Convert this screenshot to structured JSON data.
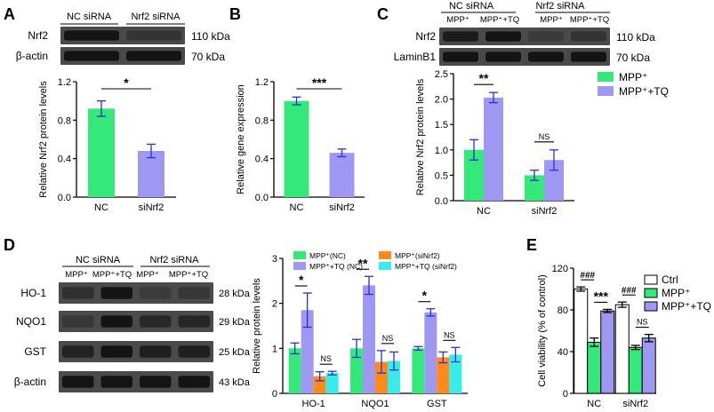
{
  "colors": {
    "green": "#35e87a",
    "purple": "#9e98f2",
    "orange": "#ff8a1a",
    "cyan": "#36ecec",
    "white": "#ffffff",
    "errorbar": "#2a2fd6",
    "blot_band": "#1a1a1a",
    "blot_bg": "#4a4a4a"
  },
  "panels": {
    "a": {
      "letter": "A",
      "blot": {
        "lane_labels": [
          "NC siRNA",
          "Nrf2 siRNA"
        ],
        "rows": [
          {
            "name": "Nrf2",
            "kda": "110 kDa"
          },
          {
            "name": "β-actin",
            "kda": "70 kDa"
          }
        ]
      }
    },
    "b": {
      "letter": "B"
    },
    "c": {
      "letter": "C",
      "blot": {
        "group_labels": [
          "NC siRNA",
          "Nrf2 siRNA"
        ],
        "lane_labels": [
          "MPP⁺",
          "MPP⁺+TQ",
          "MPP⁺",
          "MPP⁺+TQ"
        ],
        "rows": [
          {
            "name": "Nrf2",
            "kda": "110 kDa"
          },
          {
            "name": "LaminB1",
            "kda": "70 kDa"
          }
        ]
      }
    },
    "d": {
      "letter": "D",
      "blot": {
        "group_labels": [
          "NC siRNA",
          "Nrf2 siRNA"
        ],
        "lane_labels": [
          "MPP⁺",
          "MPP⁺+TQ",
          "MPP⁺",
          "MPP⁺+TQ"
        ],
        "rows": [
          {
            "name": "HO-1",
            "kda": "28 kDa"
          },
          {
            "name": "NQO1",
            "kda": "29 kDa"
          },
          {
            "name": "GST",
            "kda": "25 kDa"
          },
          {
            "name": "β-actin",
            "kda": "43 kDa"
          }
        ]
      }
    },
    "e": {
      "letter": "E"
    }
  },
  "chart_data": [
    {
      "id": "A",
      "type": "bar",
      "ylabel": "Relative Nrf2 protein levels",
      "ylim": [
        0,
        1.2
      ],
      "yticks": [
        "0.0",
        "0.4",
        "0.8",
        "1.2"
      ],
      "categories": [
        "NC",
        "siNrf2"
      ],
      "values": [
        0.92,
        0.48
      ],
      "errors": [
        0.08,
        0.07
      ],
      "colors": [
        "green",
        "purple"
      ],
      "significance": [
        {
          "label": "*",
          "between": [
            0,
            1
          ]
        }
      ]
    },
    {
      "id": "B",
      "type": "bar",
      "ylabel": "Relative gene expression",
      "ylim": [
        0,
        1.2
      ],
      "yticks": [
        "0.0",
        "0.4",
        "0.8",
        "1.2"
      ],
      "categories": [
        "NC",
        "siNrf2"
      ],
      "values": [
        1.0,
        0.46
      ],
      "errors": [
        0.04,
        0.04
      ],
      "colors": [
        "green",
        "purple"
      ],
      "significance": [
        {
          "label": "***",
          "between": [
            0,
            1
          ]
        }
      ]
    },
    {
      "id": "C",
      "type": "bar",
      "ylabel": "Relative Nrf2 protein levels",
      "ylim": [
        0,
        2.5
      ],
      "yticks": [
        "0.0",
        "0.5",
        "1.0",
        "1.5",
        "2.0",
        "2.5"
      ],
      "categories": [
        "NC",
        "siNrf2"
      ],
      "series": [
        {
          "name": "MPP⁺",
          "color": "green",
          "values": [
            1.0,
            0.5
          ],
          "errors": [
            0.2,
            0.1
          ]
        },
        {
          "name": "MPP⁺+TQ",
          "color": "purple",
          "values": [
            2.03,
            0.8
          ],
          "errors": [
            0.1,
            0.2
          ]
        }
      ],
      "significance": [
        {
          "label": "**",
          "category": 0
        },
        {
          "label": "NS",
          "category": 1
        }
      ],
      "legend": "top-right"
    },
    {
      "id": "D",
      "type": "bar",
      "ylabel": "Relative protein levels",
      "ylim": [
        0,
        3
      ],
      "yticks": [
        "0",
        "1",
        "2",
        "3"
      ],
      "categories": [
        "HO-1",
        "NQO1",
        "GST"
      ],
      "series": [
        {
          "name": "MPP⁺(NC)",
          "color": "green",
          "values": [
            1.0,
            1.0,
            1.0
          ],
          "errors": [
            0.12,
            0.2,
            0.04
          ]
        },
        {
          "name": "MPP⁺+TQ (NC)",
          "color": "purple",
          "values": [
            1.85,
            2.4,
            1.8
          ],
          "errors": [
            0.38,
            0.2,
            0.08
          ]
        },
        {
          "name": "MPP⁺(siNrf2)",
          "color": "orange",
          "values": [
            0.38,
            0.7,
            0.8
          ],
          "errors": [
            0.1,
            0.25,
            0.12
          ]
        },
        {
          "name": "MPP⁺+TQ (siNrf2)",
          "color": "cyan",
          "values": [
            0.45,
            0.72,
            0.86
          ],
          "errors": [
            0.04,
            0.2,
            0.16
          ]
        }
      ],
      "significance": [
        {
          "label": "*",
          "category": 0,
          "pair": [
            0,
            1
          ]
        },
        {
          "label": "NS",
          "category": 0,
          "pair": [
            2,
            3
          ]
        },
        {
          "label": "**",
          "category": 1,
          "pair": [
            0,
            1
          ]
        },
        {
          "label": "NS",
          "category": 1,
          "pair": [
            2,
            3
          ]
        },
        {
          "label": "*",
          "category": 2,
          "pair": [
            0,
            1
          ]
        },
        {
          "label": "NS",
          "category": 2,
          "pair": [
            2,
            3
          ]
        }
      ],
      "legend": "top"
    },
    {
      "id": "E",
      "type": "bar",
      "ylabel": "Cell viability (% of control)",
      "ylim": [
        0,
        120
      ],
      "yticks": [
        "0",
        "40",
        "80",
        "120"
      ],
      "categories": [
        "NC",
        "siNrf2"
      ],
      "series": [
        {
          "name": "Ctrl",
          "color": "white",
          "values": [
            100,
            85
          ],
          "errors": [
            2,
            2.5
          ]
        },
        {
          "name": "MPP⁺",
          "color": "green",
          "values": [
            49,
            44
          ],
          "errors": [
            4,
            2
          ]
        },
        {
          "name": "MPP⁺+TQ",
          "color": "purple",
          "values": [
            79,
            53
          ],
          "errors": [
            1.5,
            3.5
          ]
        }
      ],
      "significance": [
        {
          "label": "###",
          "category": 0,
          "pair": [
            0,
            1
          ]
        },
        {
          "label": "***",
          "category": 0,
          "pair": [
            1,
            2
          ]
        },
        {
          "label": "###",
          "category": 1,
          "pair": [
            0,
            1
          ]
        },
        {
          "label": "NS",
          "category": 1,
          "pair": [
            1,
            2
          ]
        }
      ],
      "legend": "top-right"
    }
  ]
}
